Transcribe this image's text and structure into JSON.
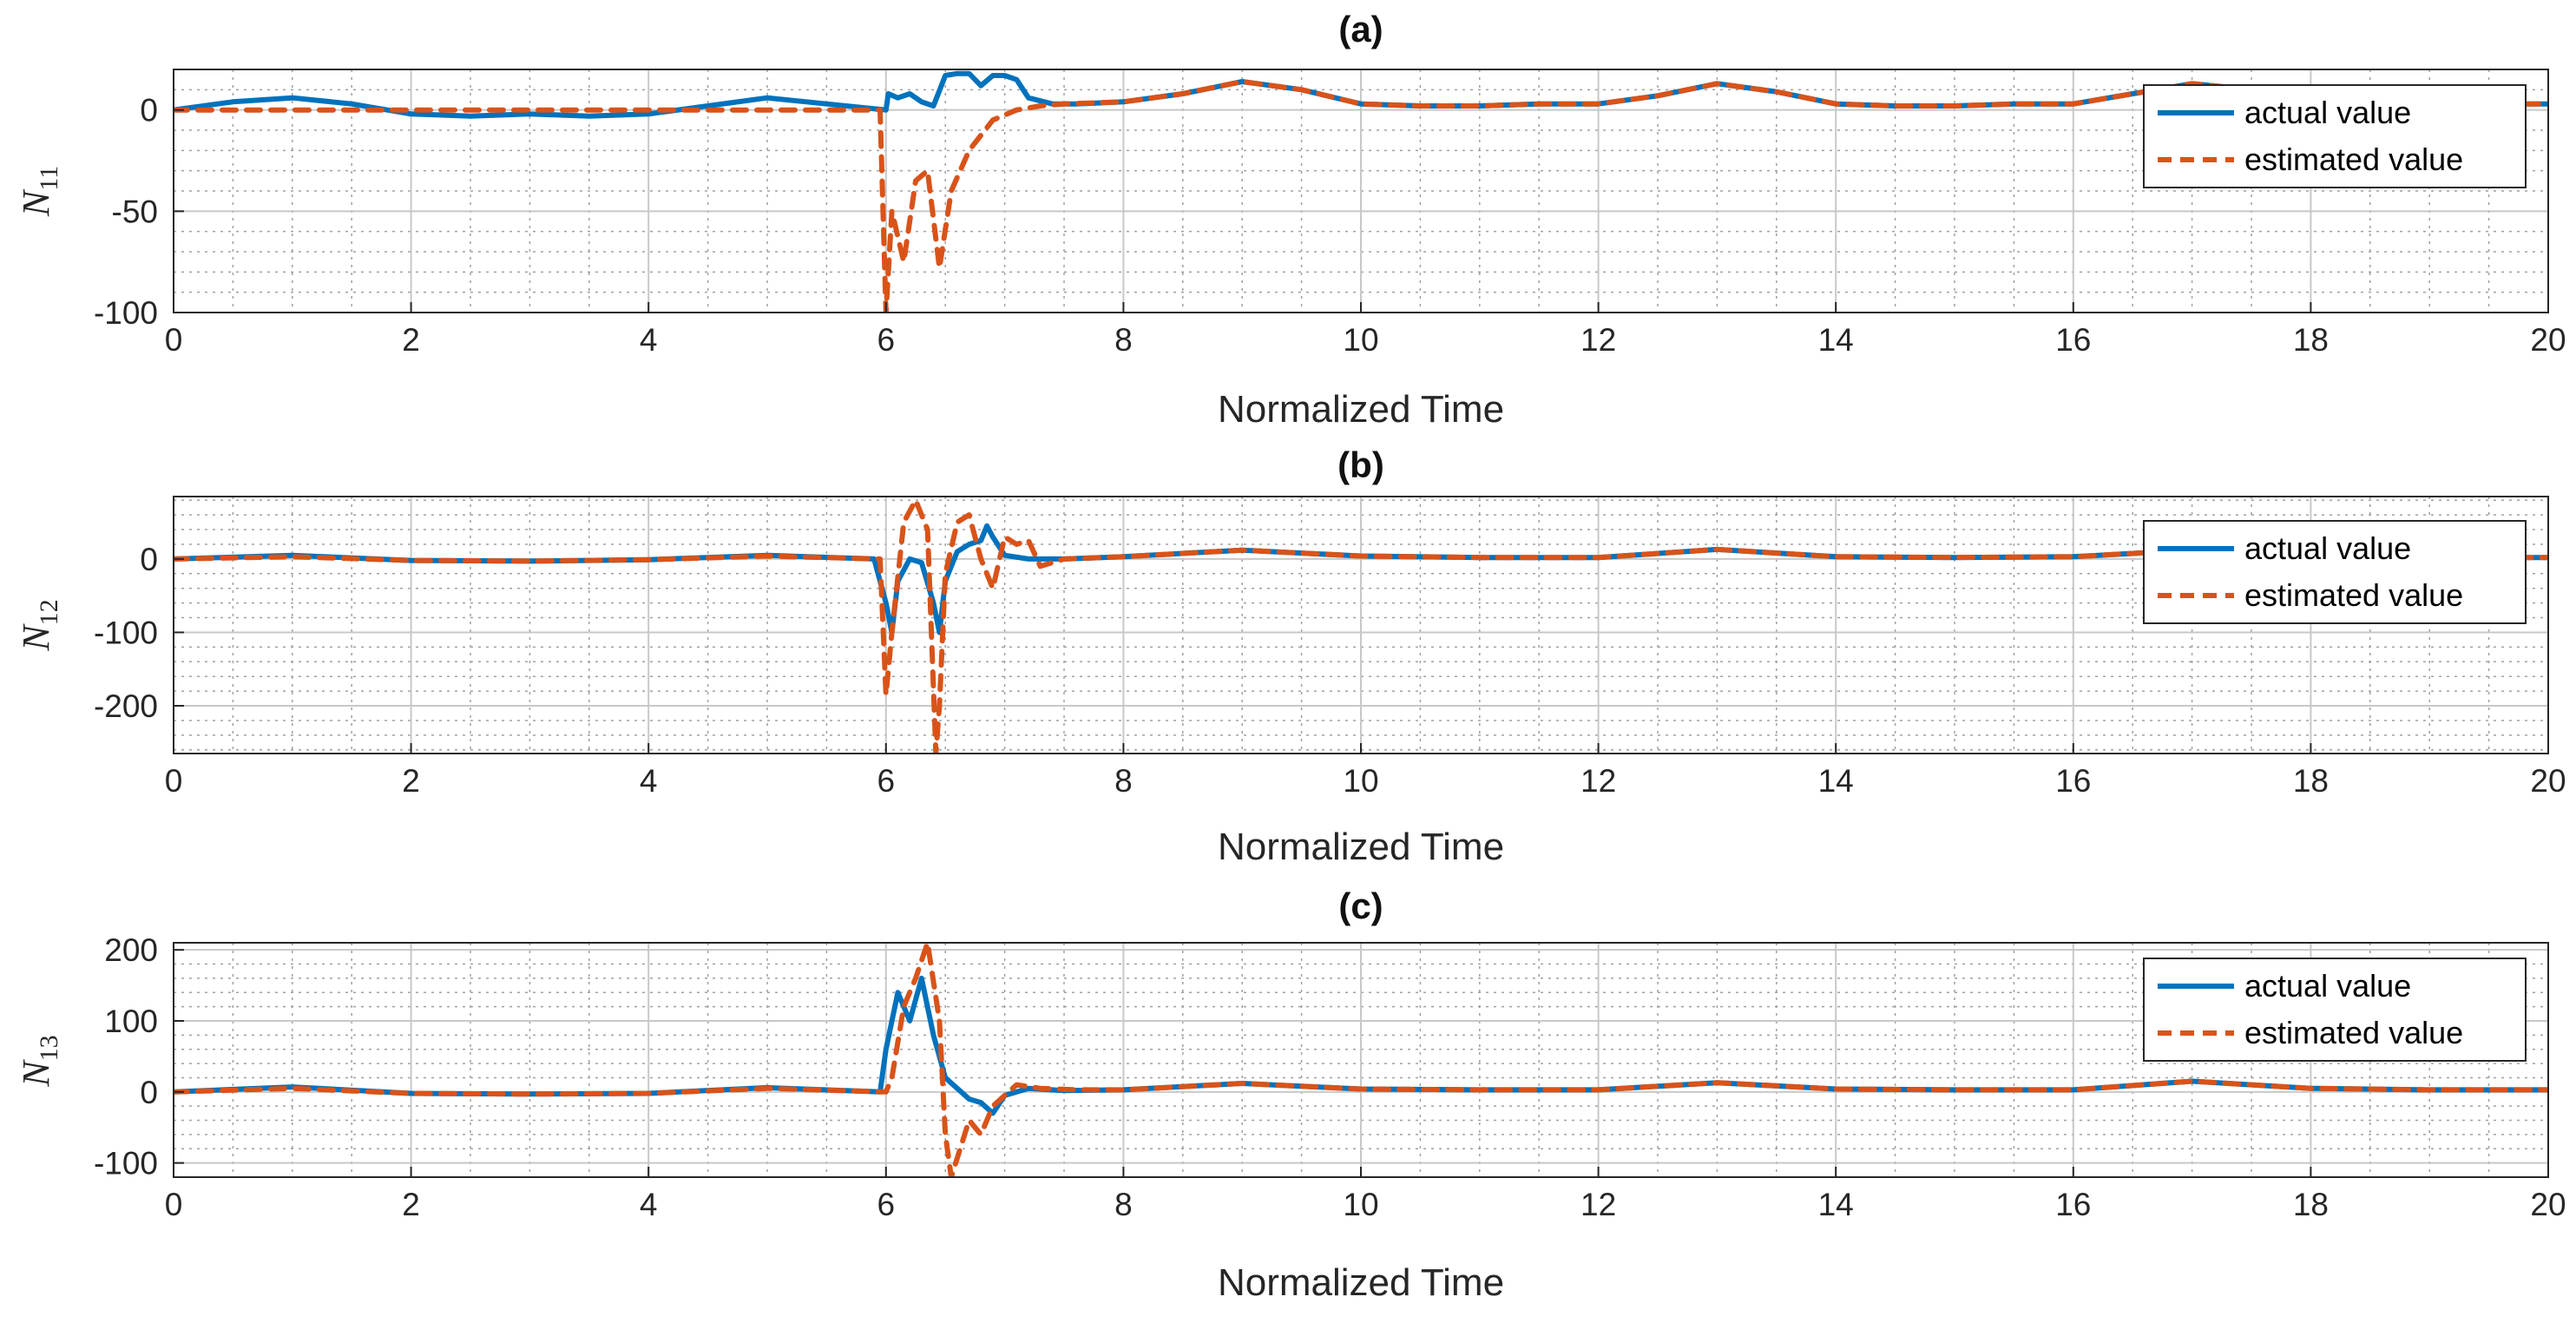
{
  "colors": {
    "actual": "#0072BD",
    "estimated": "#D95319",
    "grid_major": "#c8c8c8",
    "grid_minor": "#a0a0a0",
    "axis": "#262626"
  },
  "chart_data": [
    {
      "type": "line",
      "title": "(a)",
      "xlabel": "Normalized Time",
      "ylabel_main": "N",
      "ylabel_sub": "11",
      "xlim": [
        0,
        20
      ],
      "ylim": [
        -100,
        20
      ],
      "xticks": [
        "0",
        "2",
        "4",
        "6",
        "8",
        "10",
        "12",
        "14",
        "16",
        "18",
        "20"
      ],
      "yticks": [
        0,
        -50,
        -100
      ],
      "ytick_labels": [
        "0",
        "-50",
        "-100"
      ],
      "legend": {
        "position": "top-right",
        "entries": [
          "actual value",
          "estimated value"
        ]
      },
      "series": [
        {
          "name": "actual value",
          "style": "solid",
          "x": [
            0,
            0.5,
            1,
            1.5,
            2,
            2.5,
            3,
            3.5,
            4,
            4.5,
            5,
            5.5,
            6,
            6.02,
            6.1,
            6.2,
            6.3,
            6.4,
            6.5,
            6.6,
            6.7,
            6.8,
            6.9,
            7,
            7.1,
            7.2,
            7.4,
            7.6,
            8,
            8.5,
            9,
            9.5,
            10,
            10.5,
            11,
            11.5,
            12,
            12.5,
            13,
            13.5,
            14,
            14.5,
            15,
            15.5,
            16,
            16.5,
            17,
            17.5,
            18,
            18.5,
            19,
            19.5,
            20
          ],
          "y": [
            0,
            4,
            6,
            3,
            -2,
            -3,
            -2,
            -3,
            -2,
            2,
            6,
            3,
            0,
            8,
            6,
            8,
            4,
            2,
            17,
            18,
            18,
            12,
            17,
            17,
            15,
            6,
            3,
            3,
            4,
            8,
            14,
            10,
            3,
            2,
            2,
            3,
            3,
            7,
            13,
            9,
            3,
            2,
            2,
            3,
            3,
            8,
            13,
            10,
            3,
            2,
            2,
            3,
            3
          ]
        },
        {
          "name": "estimated value",
          "style": "dashed",
          "x": [
            0,
            2,
            4,
            5.95,
            6.0,
            6.05,
            6.15,
            6.25,
            6.35,
            6.45,
            6.55,
            6.7,
            6.9,
            7.1,
            7.3,
            7.5,
            8,
            8.5,
            9,
            9.5,
            10,
            10.5,
            11,
            11.5,
            12,
            12.5,
            13,
            13.5,
            14,
            14.5,
            15,
            15.5,
            16,
            16.5,
            17,
            17.5,
            18,
            18.5,
            19,
            19.5,
            20
          ],
          "y": [
            0,
            0,
            0,
            0,
            -100,
            -50,
            -75,
            -35,
            -30,
            -78,
            -40,
            -20,
            -5,
            0,
            2,
            3,
            4,
            8,
            14,
            10,
            3,
            2,
            2,
            3,
            3,
            7,
            13,
            9,
            3,
            2,
            2,
            3,
            3,
            8,
            13,
            10,
            3,
            2,
            2,
            3,
            3
          ]
        }
      ]
    },
    {
      "type": "line",
      "title": "(b)",
      "xlabel": "Normalized Time",
      "ylabel_main": "N",
      "ylabel_sub": "12",
      "xlim": [
        0,
        20
      ],
      "ylim": [
        -265,
        85
      ],
      "xticks": [
        "0",
        "2",
        "4",
        "6",
        "8",
        "10",
        "12",
        "14",
        "16",
        "18",
        "20"
      ],
      "yticks": [
        0,
        -100,
        -200
      ],
      "ytick_labels": [
        "0",
        "-100",
        "-200"
      ],
      "legend": {
        "position": "top-right",
        "entries": [
          "actual value",
          "estimated value"
        ]
      },
      "series": [
        {
          "name": "actual value",
          "style": "solid",
          "x": [
            0,
            1,
            2,
            3,
            4,
            5,
            5.9,
            6.0,
            6.05,
            6.1,
            6.2,
            6.3,
            6.4,
            6.45,
            6.5,
            6.6,
            6.7,
            6.8,
            6.85,
            6.9,
            7,
            7.2,
            7.5,
            8,
            9,
            10,
            11,
            12,
            13,
            14,
            15,
            16,
            17,
            18,
            19,
            20
          ],
          "y": [
            0,
            5,
            -2,
            -3,
            -1,
            5,
            0,
            -60,
            -100,
            -30,
            0,
            -5,
            -60,
            -100,
            -30,
            10,
            20,
            25,
            45,
            30,
            5,
            0,
            0,
            3,
            12,
            4,
            2,
            2,
            13,
            3,
            2,
            3,
            12,
            3,
            2,
            2
          ]
        },
        {
          "name": "estimated value",
          "style": "dashed",
          "x": [
            0,
            1,
            2,
            3,
            4,
            5,
            5.95,
            6.0,
            6.05,
            6.15,
            6.25,
            6.35,
            6.42,
            6.45,
            6.5,
            6.6,
            6.7,
            6.8,
            6.9,
            7,
            7.1,
            7.2,
            7.3,
            7.5,
            8,
            9,
            10,
            11,
            12,
            13,
            14,
            15,
            16,
            17,
            18,
            19,
            20
          ],
          "y": [
            0,
            3,
            -2,
            -3,
            -1,
            4,
            0,
            -185,
            -100,
            50,
            80,
            40,
            -265,
            -200,
            -20,
            50,
            60,
            0,
            -40,
            30,
            20,
            25,
            -10,
            0,
            3,
            12,
            4,
            2,
            2,
            13,
            3,
            2,
            3,
            12,
            3,
            2,
            2
          ]
        }
      ]
    },
    {
      "type": "line",
      "title": "(c)",
      "xlabel": "Normalized Time",
      "ylabel_main": "N",
      "ylabel_sub": "13",
      "xlim": [
        0,
        20
      ],
      "ylim": [
        -120,
        210
      ],
      "xticks": [
        "0",
        "2",
        "4",
        "6",
        "8",
        "10",
        "12",
        "14",
        "16",
        "18",
        "20"
      ],
      "yticks": [
        200,
        100,
        0,
        -100
      ],
      "ytick_labels": [
        "200",
        "100",
        "0",
        "-100"
      ],
      "legend": {
        "position": "top-right",
        "entries": [
          "actual value",
          "estimated value"
        ]
      },
      "series": [
        {
          "name": "actual value",
          "style": "solid",
          "x": [
            0,
            1,
            2,
            3,
            4,
            5,
            5.95,
            6.0,
            6.1,
            6.2,
            6.3,
            6.4,
            6.5,
            6.6,
            6.7,
            6.8,
            6.9,
            7,
            7.2,
            7.5,
            8,
            9,
            10,
            11,
            12,
            13,
            14,
            15,
            16,
            17,
            18,
            19,
            20
          ],
          "y": [
            0,
            7,
            -2,
            -3,
            -2,
            6,
            0,
            60,
            140,
            100,
            160,
            80,
            20,
            5,
            -10,
            -15,
            -30,
            -5,
            5,
            2,
            3,
            12,
            4,
            3,
            3,
            13,
            4,
            3,
            3,
            15,
            5,
            3,
            3
          ]
        },
        {
          "name": "estimated value",
          "style": "dashed",
          "x": [
            0,
            1,
            2,
            3,
            4,
            5,
            6.0,
            6.05,
            6.15,
            6.25,
            6.35,
            6.45,
            6.5,
            6.55,
            6.7,
            6.8,
            6.9,
            7.0,
            7.1,
            7.3,
            7.6,
            8,
            9,
            10,
            11,
            12,
            13,
            14,
            15,
            16,
            17,
            18,
            19,
            20
          ],
          "y": [
            0,
            5,
            -2,
            -3,
            -2,
            5,
            0,
            20,
            120,
            160,
            210,
            100,
            -60,
            -120,
            -40,
            -60,
            -20,
            -5,
            10,
            5,
            3,
            3,
            12,
            4,
            3,
            3,
            13,
            4,
            3,
            3,
            15,
            5,
            3,
            3
          ]
        }
      ]
    }
  ]
}
